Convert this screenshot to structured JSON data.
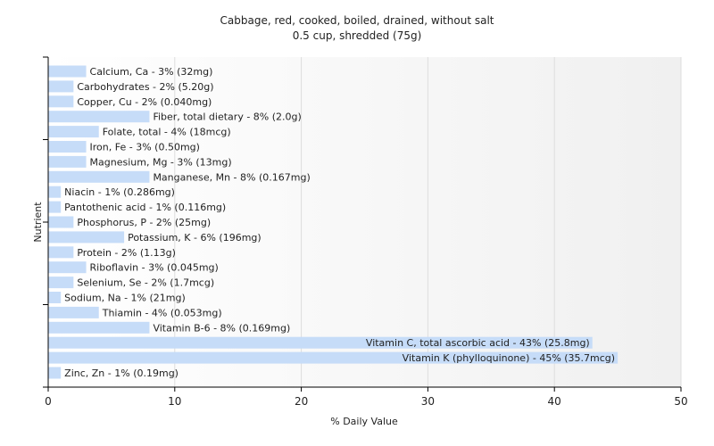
{
  "chart_data": {
    "type": "bar",
    "orientation": "horizontal",
    "title": "Cabbage, red, cooked, boiled, drained, without salt",
    "subtitle": "0.5 cup, shredded (75g)",
    "xlabel": "% Daily Value",
    "ylabel": "Nutrient",
    "xlim": [
      0,
      50
    ],
    "xticks": [
      0,
      10,
      20,
      30,
      40,
      50
    ],
    "grid": true,
    "bar_color": "#c6dcf8",
    "bars": [
      {
        "label": "Calcium, Ca - 3% (32mg)",
        "value": 3
      },
      {
        "label": "Carbohydrates - 2% (5.20g)",
        "value": 2
      },
      {
        "label": "Copper, Cu - 2% (0.040mg)",
        "value": 2
      },
      {
        "label": "Fiber, total dietary - 8% (2.0g)",
        "value": 8
      },
      {
        "label": "Folate, total - 4% (18mcg)",
        "value": 4
      },
      {
        "label": "Iron, Fe - 3% (0.50mg)",
        "value": 3
      },
      {
        "label": "Magnesium, Mg - 3% (13mg)",
        "value": 3
      },
      {
        "label": "Manganese, Mn - 8% (0.167mg)",
        "value": 8
      },
      {
        "label": "Niacin - 1% (0.286mg)",
        "value": 1
      },
      {
        "label": "Pantothenic acid - 1% (0.116mg)",
        "value": 1
      },
      {
        "label": "Phosphorus, P - 2% (25mg)",
        "value": 2
      },
      {
        "label": "Potassium, K - 6% (196mg)",
        "value": 6
      },
      {
        "label": "Protein - 2% (1.13g)",
        "value": 2
      },
      {
        "label": "Riboflavin - 3% (0.045mg)",
        "value": 3
      },
      {
        "label": "Selenium, Se - 2% (1.7mcg)",
        "value": 2
      },
      {
        "label": "Sodium, Na - 1% (21mg)",
        "value": 1
      },
      {
        "label": "Thiamin - 4% (0.053mg)",
        "value": 4
      },
      {
        "label": "Vitamin B-6 - 8% (0.169mg)",
        "value": 8
      },
      {
        "label": "Vitamin C, total ascorbic acid - 43% (25.8mg)",
        "value": 43
      },
      {
        "label": "Vitamin K (phylloquinone) - 45% (35.7mcg)",
        "value": 45
      },
      {
        "label": "Zinc, Zn - 1% (0.19mg)",
        "value": 1
      }
    ]
  }
}
